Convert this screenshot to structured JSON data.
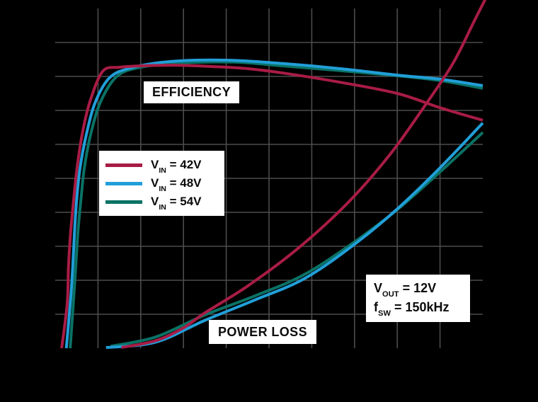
{
  "figure": {
    "background_color": "#000000",
    "grid_color": "#4c4c4c",
    "label_box_background": "#ffffff",
    "label_text_color": "#0b0b0b"
  },
  "labels": {
    "efficiency": "EFFICIENCY",
    "power_loss": "POWER LOSS"
  },
  "legend": {
    "items": [
      {
        "sym": "V",
        "sub": "IN",
        "rest": " = 42V",
        "color": "#a81c45"
      },
      {
        "sym": "V",
        "sub": "IN",
        "rest": " = 48V",
        "color": "#219fd9"
      },
      {
        "sym": "V",
        "sub": "IN",
        "rest": " = 54V",
        "color": "#0a7265"
      }
    ]
  },
  "annotation": {
    "lines": [
      {
        "sym": "V",
        "sub": "OUT",
        "rest": " = 12V"
      },
      {
        "sym": "f",
        "sub": "SW",
        "rest": " = 150kHz"
      }
    ]
  },
  "chart_data": {
    "type": "line",
    "title": "",
    "xlabel": "",
    "ylabel_left": "",
    "ylabel_right": "",
    "axis_note": "10x10 gray grid; axis tick labels are not visible in the image (black on black); point coordinates below are in grid divisions, x 0-10 left-to-right, y 0-10 bottom-to-top",
    "x_range": [
      0,
      10
    ],
    "y_range": [
      0,
      10
    ],
    "grid": true,
    "legend_entries": [
      "VIN = 42V",
      "VIN = 48V",
      "VIN = 54V"
    ],
    "curve_group_labels": [
      "EFFICIENCY",
      "POWER LOSS"
    ],
    "conditions": [
      "VOUT = 12V",
      "fSW = 150kHz"
    ],
    "series": [
      {
        "name": "efficiency_vin_54v",
        "group": "efficiency",
        "color": "#0a7265",
        "points": [
          [
            0.35,
            0
          ],
          [
            0.43,
            1.44
          ],
          [
            0.48,
            2.4
          ],
          [
            0.53,
            3.4
          ],
          [
            0.6,
            4.35
          ],
          [
            0.68,
            5.3
          ],
          [
            0.83,
            6.3
          ],
          [
            1.06,
            7.25
          ],
          [
            1.44,
            8.0
          ],
          [
            2.0,
            8.27
          ],
          [
            3.0,
            8.4
          ],
          [
            4.2,
            8.42
          ],
          [
            5.33,
            8.31
          ],
          [
            6.66,
            8.17
          ],
          [
            8.0,
            8.02
          ],
          [
            9.0,
            7.88
          ],
          [
            10.0,
            7.65
          ]
        ]
      },
      {
        "name": "efficiency_vin_48v",
        "group": "efficiency",
        "color": "#219fd9",
        "points": [
          [
            0.26,
            0
          ],
          [
            0.36,
            1.44
          ],
          [
            0.41,
            2.4
          ],
          [
            0.45,
            3.4
          ],
          [
            0.5,
            4.35
          ],
          [
            0.58,
            5.3
          ],
          [
            0.73,
            6.3
          ],
          [
            0.94,
            7.25
          ],
          [
            1.27,
            7.96
          ],
          [
            1.77,
            8.25
          ],
          [
            2.7,
            8.44
          ],
          [
            4.0,
            8.48
          ],
          [
            5.33,
            8.38
          ],
          [
            6.66,
            8.23
          ],
          [
            8.0,
            8.04
          ],
          [
            9.0,
            7.92
          ],
          [
            10.0,
            7.73
          ]
        ]
      },
      {
        "name": "efficiency_vin_42v",
        "group": "efficiency",
        "color": "#a81c45",
        "points": [
          [
            0.15,
            0
          ],
          [
            0.28,
            1.3
          ],
          [
            0.31,
            2.4
          ],
          [
            0.36,
            3.4
          ],
          [
            0.43,
            4.35
          ],
          [
            0.51,
            5.3
          ],
          [
            0.63,
            6.3
          ],
          [
            0.81,
            7.25
          ],
          [
            1.11,
            8.15
          ],
          [
            1.5,
            8.27
          ],
          [
            2.0,
            8.31
          ],
          [
            2.85,
            8.33
          ],
          [
            3.7,
            8.29
          ],
          [
            4.5,
            8.23
          ],
          [
            5.33,
            8.1
          ],
          [
            6.66,
            7.83
          ],
          [
            8.0,
            7.5
          ],
          [
            9.0,
            7.08
          ],
          [
            10.0,
            6.71
          ]
        ]
      },
      {
        "name": "power_loss_vin_54v",
        "group": "power_loss",
        "color": "#0a7265",
        "points": [
          [
            1.3,
            0.06
          ],
          [
            2.35,
            0.33
          ],
          [
            3.5,
            0.98
          ],
          [
            4.67,
            1.54
          ],
          [
            5.83,
            2.17
          ],
          [
            7.0,
            3.13
          ],
          [
            8.0,
            4.08
          ],
          [
            9.0,
            5.19
          ],
          [
            10.0,
            6.35
          ]
        ]
      },
      {
        "name": "power_loss_vin_48v",
        "group": "power_loss",
        "color": "#219fd9",
        "points": [
          [
            1.19,
            0.02
          ],
          [
            2.35,
            0.18
          ],
          [
            3.5,
            0.82
          ],
          [
            4.67,
            1.42
          ],
          [
            5.83,
            2.05
          ],
          [
            7.0,
            3.06
          ],
          [
            8.0,
            4.1
          ],
          [
            9.0,
            5.31
          ],
          [
            10.0,
            6.63
          ]
        ]
      },
      {
        "name": "power_loss_vin_42v",
        "group": "power_loss",
        "color": "#a81c45",
        "points": [
          [
            1.55,
            0.02
          ],
          [
            2.35,
            0.22
          ],
          [
            3.0,
            0.6
          ],
          [
            3.5,
            1.04
          ],
          [
            4.5,
            1.83
          ],
          [
            5.66,
            2.92
          ],
          [
            6.82,
            4.25
          ],
          [
            7.81,
            5.67
          ],
          [
            8.64,
            7.13
          ],
          [
            9.3,
            8.38
          ],
          [
            9.8,
            9.63
          ],
          [
            10.15,
            10.5
          ]
        ]
      }
    ]
  }
}
